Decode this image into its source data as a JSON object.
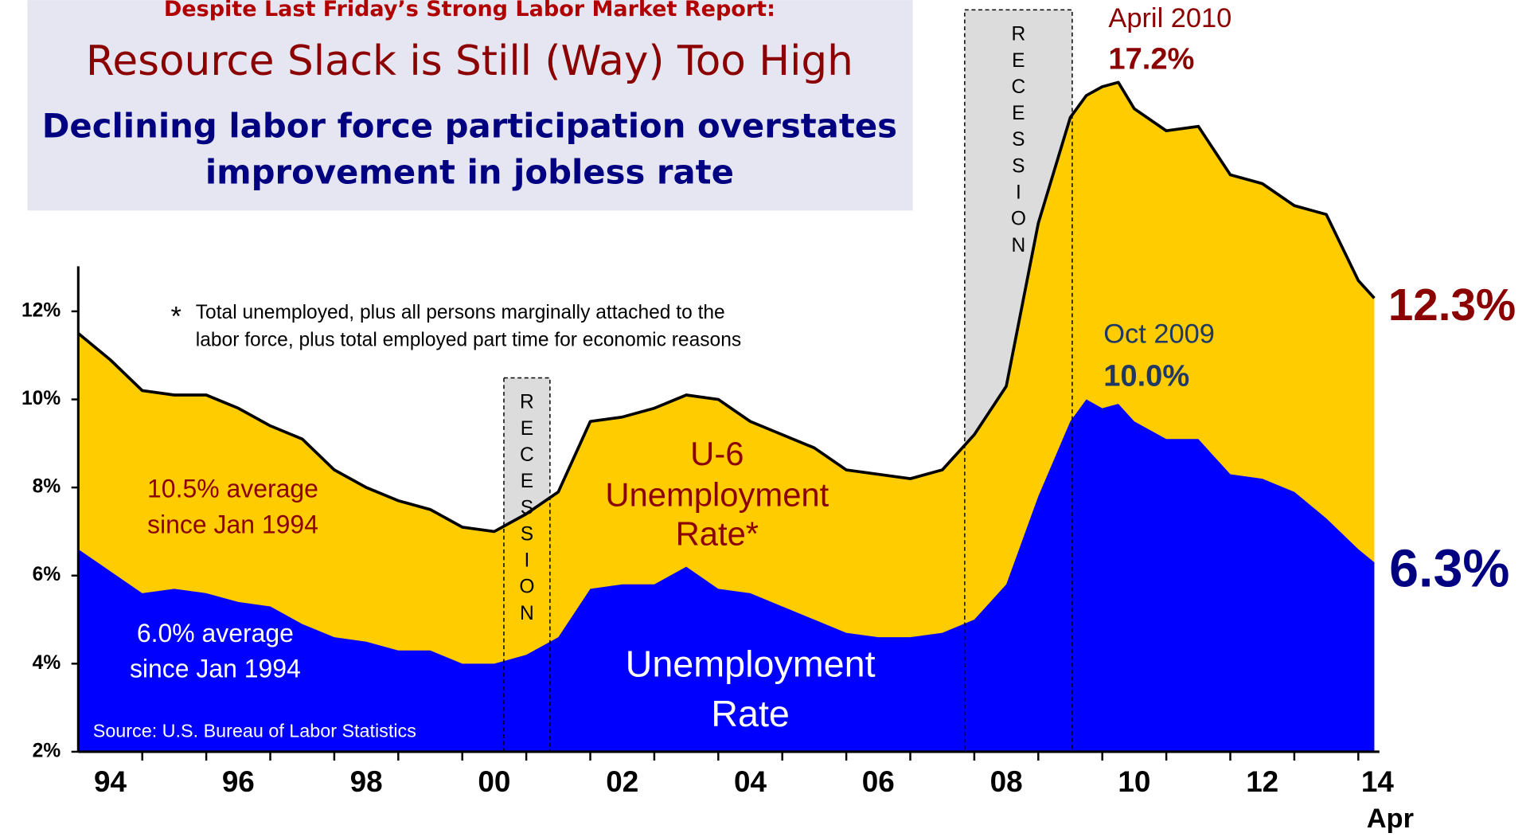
{
  "chart_data": {
    "type": "area",
    "header": {
      "kicker": "Despite Last Friday’s Strong Labor Market Report:",
      "title": "Resource Slack is Still (Way) Too High",
      "subtitle": [
        "Declining labor force participation overstates",
        "improvement in jobless rate"
      ]
    },
    "x": [
      1994.0,
      1994.5,
      1995.0,
      1995.5,
      1996.0,
      1996.5,
      1997.0,
      1997.5,
      1998.0,
      1998.5,
      1999.0,
      1999.5,
      2000.0,
      2000.5,
      2001.0,
      2001.5,
      2002.0,
      2002.5,
      2003.0,
      2003.5,
      2004.0,
      2004.5,
      2005.0,
      2005.5,
      2006.0,
      2006.5,
      2007.0,
      2007.5,
      2008.0,
      2008.5,
      2009.0,
      2009.5,
      2009.75,
      2010.0,
      2010.25,
      2010.5,
      2011.0,
      2011.5,
      2012.0,
      2012.5,
      2013.0,
      2013.5,
      2014.0,
      2014.25
    ],
    "series": [
      {
        "name": "U-6 Unemployment Rate*",
        "color": "#ffcc00",
        "line_color": "#000000",
        "values": [
          11.5,
          10.9,
          10.2,
          10.1,
          10.1,
          9.8,
          9.4,
          9.1,
          8.4,
          8.0,
          7.7,
          7.5,
          7.1,
          7.0,
          7.4,
          7.9,
          9.5,
          9.6,
          9.8,
          10.1,
          10.0,
          9.5,
          9.2,
          8.9,
          8.4,
          8.3,
          8.2,
          8.4,
          9.2,
          10.3,
          14.0,
          16.4,
          16.9,
          17.1,
          17.2,
          16.6,
          16.1,
          16.2,
          15.1,
          14.9,
          14.4,
          14.2,
          12.7,
          12.3
        ]
      },
      {
        "name": "Unemployment Rate",
        "color": "#0000ff",
        "values": [
          6.6,
          6.1,
          5.6,
          5.7,
          5.6,
          5.4,
          5.3,
          4.9,
          4.6,
          4.5,
          4.3,
          4.3,
          4.0,
          4.0,
          4.2,
          4.6,
          5.7,
          5.8,
          5.8,
          6.2,
          5.7,
          5.6,
          5.3,
          5.0,
          4.7,
          4.6,
          4.6,
          4.7,
          5.0,
          5.8,
          7.8,
          9.5,
          10.0,
          9.8,
          9.9,
          9.5,
          9.1,
          9.1,
          8.3,
          8.2,
          7.9,
          7.3,
          6.6,
          6.3
        ]
      }
    ],
    "series_labels": [
      [
        "U-6",
        "Unemployment",
        "Rate*"
      ],
      [
        "Unemployment",
        "Rate"
      ]
    ],
    "xlim": [
      1994,
      2014.33
    ],
    "ylim": [
      2,
      19
    ],
    "yticks": [
      {
        "value": 2,
        "label": "2%"
      },
      {
        "value": 4,
        "label": "4%"
      },
      {
        "value": 6,
        "label": "6%"
      },
      {
        "value": 8,
        "label": "8%"
      },
      {
        "value": 10,
        "label": "10%"
      },
      {
        "value": 12,
        "label": "12%"
      }
    ],
    "xticks": [
      {
        "value": 1994.5,
        "label": "94"
      },
      {
        "value": 1996.5,
        "label": "96"
      },
      {
        "value": 1998.5,
        "label": "98"
      },
      {
        "value": 2000.5,
        "label": "00"
      },
      {
        "value": 2002.5,
        "label": "02"
      },
      {
        "value": 2004.5,
        "label": "04"
      },
      {
        "value": 2006.5,
        "label": "06"
      },
      {
        "value": 2008.5,
        "label": "08"
      },
      {
        "value": 2010.5,
        "label": "10"
      },
      {
        "value": 2012.5,
        "label": "12"
      },
      {
        "value": 2014.3,
        "label": "14"
      }
    ],
    "xminorticks": [
      1995,
      1996,
      1997,
      1998,
      1999,
      2000,
      2001,
      2002,
      2003,
      2004,
      2005,
      2006,
      2007,
      2008,
      2009,
      2010,
      2011,
      2012,
      2013,
      2014
    ],
    "x_end_label": "Apr",
    "recessions": [
      {
        "start": 2000.65,
        "end": 2001.37,
        "label": "RECESSION"
      },
      {
        "start": 2007.85,
        "end": 2009.53,
        "label": "RECESSION"
      }
    ],
    "recession_color": "#dcdcdc",
    "annotations": {
      "peak_u6_date": "April 2010",
      "peak_u6_value": "17.2%",
      "peak_ur_date": "Oct 2009",
      "peak_ur_value": "10.0%",
      "last_u6": "12.3%",
      "last_ur": "6.3%",
      "avg_u6": [
        "10.5% average",
        "since Jan 1994"
      ],
      "avg_ur": [
        "6.0% average",
        "since Jan 1994"
      ],
      "note_mark": "*",
      "note": [
        "Total unemployed, plus all persons marginally attached to the",
        "labor force, plus total employed part time for economic reasons"
      ],
      "source": "Source:  U.S. Bureau of Labor Statistics"
    }
  }
}
